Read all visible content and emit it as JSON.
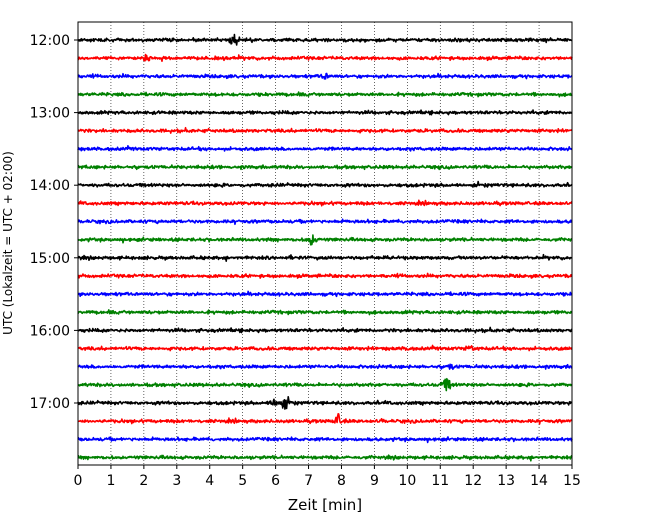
{
  "chart_data": {
    "type": "line",
    "subtype": "helicorder",
    "title": "",
    "xlabel": "Zeit  [min]",
    "ylabel": "UTC (Lokalzeit = UTC + 02:00)",
    "xlim": [
      0,
      15
    ],
    "x_ticks": [
      "0",
      "1",
      "2",
      "3",
      "4",
      "5",
      "6",
      "7",
      "8",
      "9",
      "10",
      "11",
      "12",
      "13",
      "14",
      "15"
    ],
    "y_ticks": [
      "12:00",
      "13:00",
      "14:00",
      "15:00",
      "16:00",
      "17:00"
    ],
    "grid": "vertical dotted at each minute",
    "colors": [
      "#000000",
      "#ff0000",
      "#0000ff",
      "#008000"
    ],
    "trace_start_times": [
      "12:00",
      "12:15",
      "12:30",
      "12:45",
      "13:00",
      "13:15",
      "13:30",
      "13:45",
      "14:00",
      "14:15",
      "14:30",
      "14:45",
      "15:00",
      "15:15",
      "15:30",
      "15:45",
      "16:00",
      "16:15",
      "16:30",
      "16:45",
      "17:00",
      "17:15",
      "17:30",
      "17:45"
    ],
    "events": [
      {
        "trace": 0,
        "minute": 4.7,
        "amplitude": "large"
      },
      {
        "trace": 1,
        "minute": 2.1,
        "amplitude": "medium"
      },
      {
        "trace": 2,
        "minute": 7.5,
        "amplitude": "medium"
      },
      {
        "trace": 6,
        "minute": 7.0,
        "amplitude": "small"
      },
      {
        "trace": 11,
        "minute": 7.1,
        "amplitude": "large"
      },
      {
        "trace": 12,
        "minute": 6.6,
        "amplitude": "small"
      },
      {
        "trace": 12,
        "minute": 9.3,
        "amplitude": "small"
      },
      {
        "trace": 17,
        "minute": 10.0,
        "amplitude": "small"
      },
      {
        "trace": 17,
        "minute": 11.9,
        "amplitude": "medium"
      },
      {
        "trace": 18,
        "minute": 11.3,
        "amplitude": "medium"
      },
      {
        "trace": 19,
        "minute": 11.2,
        "amplitude": "large"
      },
      {
        "trace": 20,
        "minute": 6.0,
        "amplitude": "large"
      },
      {
        "trace": 20,
        "minute": 6.3,
        "amplitude": "large"
      },
      {
        "trace": 21,
        "minute": 7.9,
        "amplitude": "large"
      },
      {
        "trace": 21,
        "minute": 9.2,
        "amplitude": "small"
      }
    ]
  }
}
